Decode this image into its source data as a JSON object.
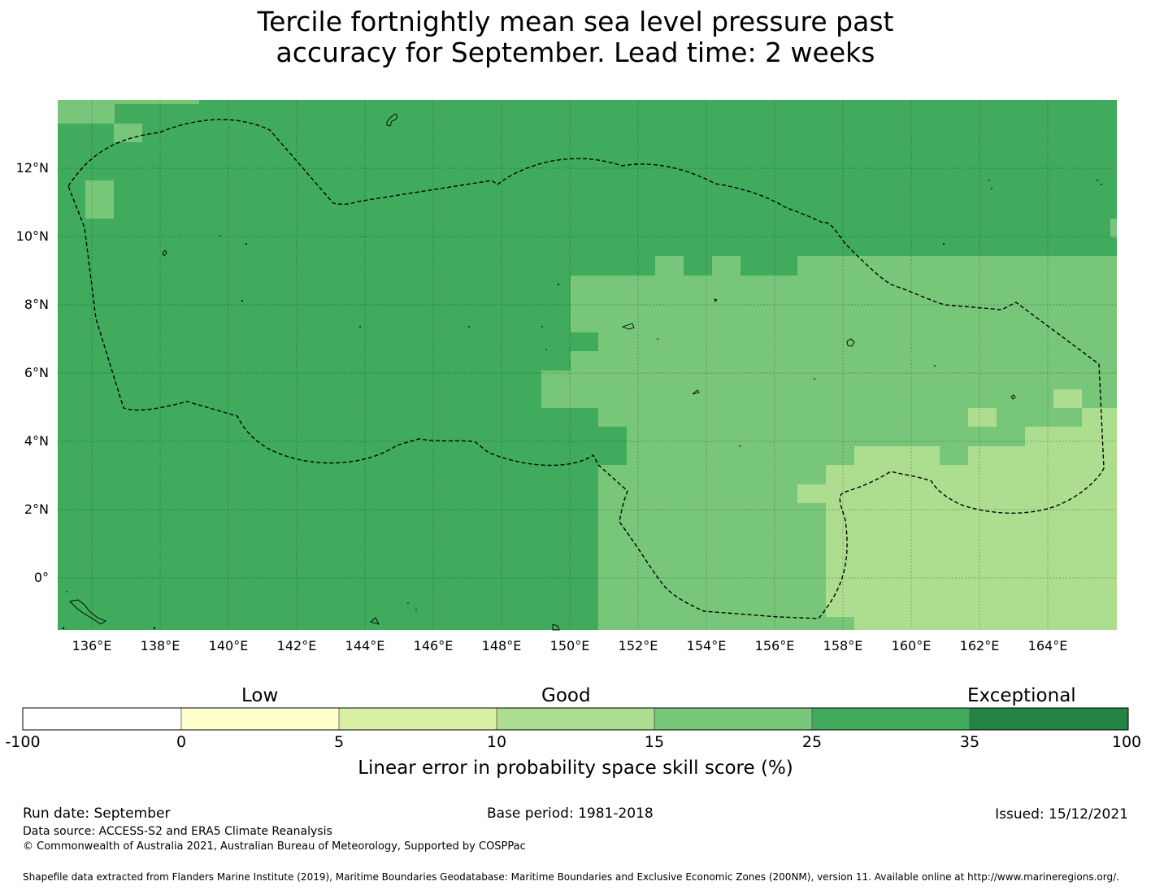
{
  "title_line1": "Tercile fortnightly mean sea level pressure past",
  "title_line2": "accuracy for September. Lead time: 2 weeks",
  "map": {
    "lat_labels": [
      "12°N",
      "10°N",
      "8°N",
      "6°N",
      "4°N",
      "2°N",
      "0°"
    ],
    "lon_labels": [
      "136°E",
      "138°E",
      "140°E",
      "142°E",
      "144°E",
      "146°E",
      "148°E",
      "150°E",
      "152°E",
      "154°E",
      "156°E",
      "158°E",
      "160°E",
      "162°E",
      "164°E"
    ]
  },
  "colorbar": {
    "categories": [
      "Low",
      "Good",
      "Exceptional"
    ],
    "ticks": [
      "-100",
      "0",
      "5",
      "10",
      "15",
      "25",
      "35",
      "100"
    ],
    "colors": [
      "#ffffff",
      "#ffffcc",
      "#d9f0a3",
      "#addd8e",
      "#78c679",
      "#41ab5d",
      "#238443"
    ],
    "label": "Linear error in probability space skill score (%)"
  },
  "footer": {
    "run_date": "Run date: September",
    "base_period": "Base period: 1981-2018",
    "issued": "Issued: 15/12/2021",
    "data_source": "Data source: ACCESS-S2 and ERA5 Climate Reanalysis",
    "copyright": "© Commonwealth of Australia 2021, Australian Bureau of Meteorology, Supported by COSPPac",
    "shapefile": "Shapefile data extracted from Flanders Marine Institute (2019), Maritime Boundaries Geodatabase: Maritime Boundaries and Exclusive Economic Zones (200NM), version 11. Available online at http://www.marineregions.org/."
  }
}
